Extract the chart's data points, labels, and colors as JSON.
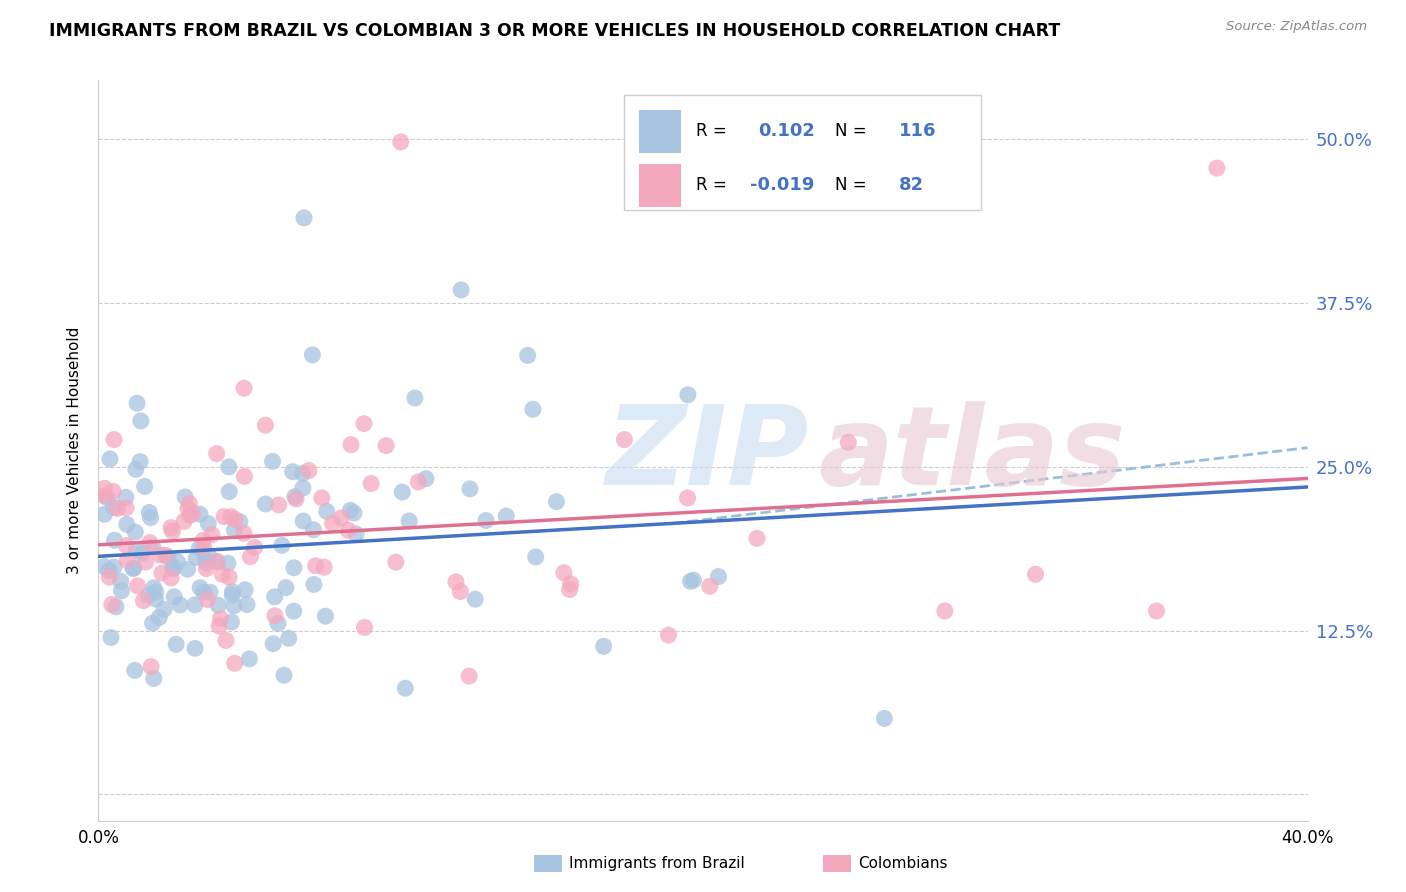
{
  "title": "IMMIGRANTS FROM BRAZIL VS COLOMBIAN 3 OR MORE VEHICLES IN HOUSEHOLD CORRELATION CHART",
  "source": "Source: ZipAtlas.com",
  "ylabel": "3 or more Vehicles in Household",
  "ytick_vals": [
    0.0,
    0.125,
    0.25,
    0.375,
    0.5
  ],
  "ytick_labels": [
    "",
    "12.5%",
    "25.0%",
    "37.5%",
    "50.0%"
  ],
  "xlim": [
    0.0,
    0.4
  ],
  "ylim": [
    -0.02,
    0.545
  ],
  "brazil_R": 0.102,
  "brazil_N": 116,
  "colombia_R": -0.019,
  "colombia_N": 82,
  "brazil_color": "#a8c4e0",
  "colombia_color": "#f4a8be",
  "brazil_line_color": "#4472c4",
  "colombia_line_color": "#e07090",
  "blue_label_color": "#4472c4",
  "grid_color": "#cccccc",
  "legend_text_color": "#4472c4",
  "brazil_intercept": 0.178,
  "brazil_slope": 0.145,
  "colombia_intercept": 0.193,
  "colombia_slope": -0.01,
  "dashed_line_start_x": 0.19,
  "dashed_line_end_x": 0.4,
  "dashed_color": "#90b8d8"
}
